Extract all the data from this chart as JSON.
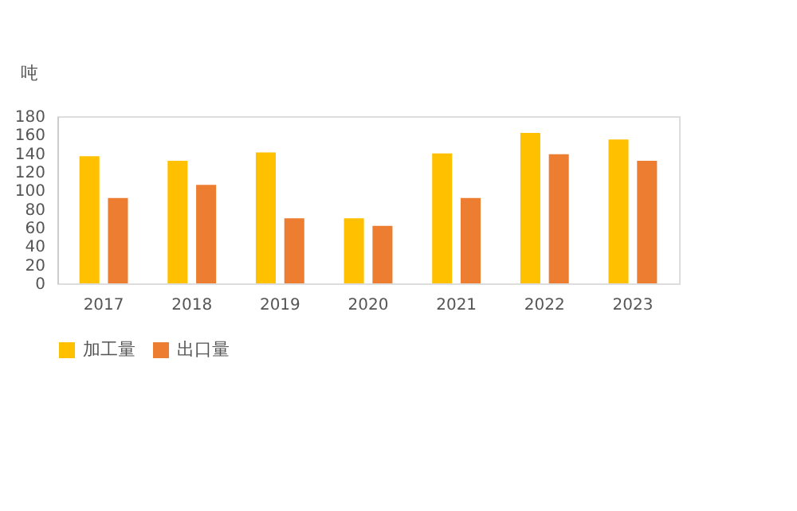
{
  "chart_data": {
    "type": "bar",
    "ylabel": "吨",
    "categories": [
      "2017",
      "2018",
      "2019",
      "2020",
      "2021",
      "2022",
      "2023"
    ],
    "series": [
      {
        "name": "加工量",
        "color": "#ffc000",
        "values": [
          137,
          132,
          141,
          70,
          140,
          162,
          155
        ]
      },
      {
        "name": "出口量",
        "color": "#ed7d31",
        "values": [
          92,
          106,
          70,
          62,
          92,
          139,
          132
        ]
      }
    ],
    "ylim": [
      0,
      180
    ],
    "yticks": [
      0,
      20,
      40,
      60,
      80,
      100,
      120,
      140,
      160,
      180
    ],
    "grid": false,
    "legend": "bottom"
  }
}
